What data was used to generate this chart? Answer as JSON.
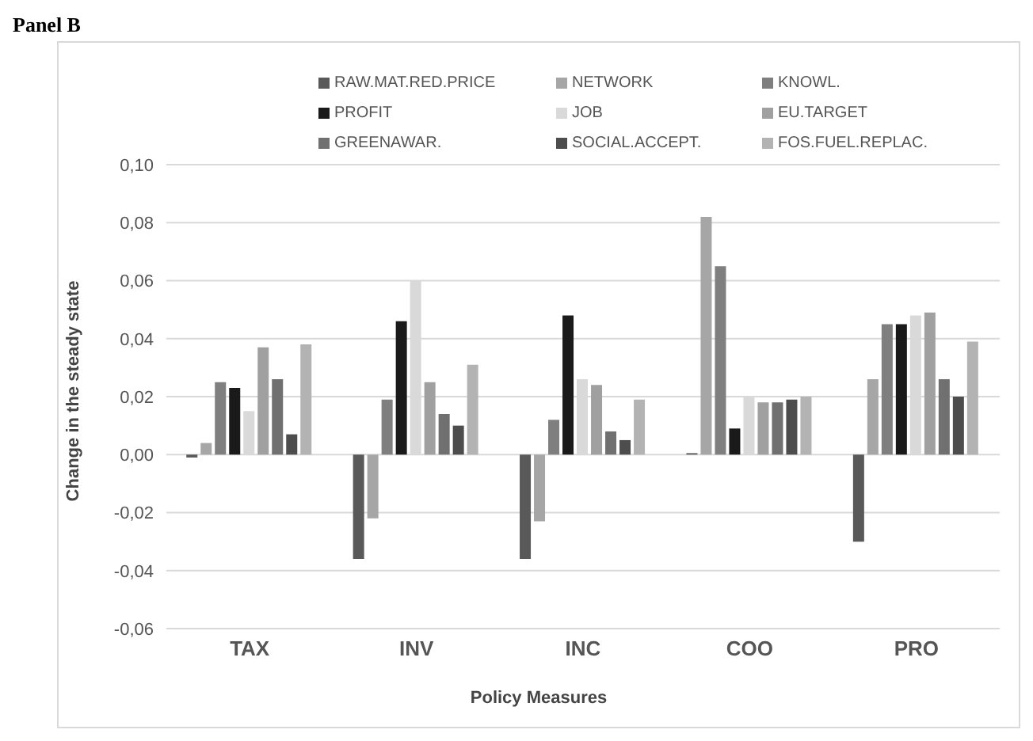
{
  "chart_data": {
    "type": "bar",
    "title": "Panel B",
    "xlabel": "Policy Measures",
    "ylabel": "Change in the steady state",
    "categories": [
      "TAX",
      "INV",
      "INC",
      "COO",
      "PRO"
    ],
    "series": [
      {
        "name": "RAW.MAT.RED.PRICE",
        "color": "#595959",
        "values": [
          -0.001,
          -0.036,
          -0.036,
          0.0005,
          -0.03
        ]
      },
      {
        "name": "NETWORK",
        "color": "#a6a6a6",
        "values": [
          0.004,
          -0.022,
          -0.023,
          0.082,
          0.026
        ]
      },
      {
        "name": "KNOWL.",
        "color": "#7f7f7f",
        "values": [
          0.025,
          0.019,
          0.012,
          0.065,
          0.045
        ]
      },
      {
        "name": "PROFIT",
        "color": "#1a1a1a",
        "values": [
          0.023,
          0.046,
          0.048,
          0.009,
          0.045
        ]
      },
      {
        "name": "JOB",
        "color": "#d9d9d9",
        "values": [
          0.015,
          0.06,
          0.026,
          0.02,
          0.048
        ]
      },
      {
        "name": "EU.TARGET",
        "color": "#a0a0a0",
        "values": [
          0.037,
          0.025,
          0.024,
          0.018,
          0.049
        ]
      },
      {
        "name": "GREENAWAR.",
        "color": "#707070",
        "values": [
          0.026,
          0.014,
          0.008,
          0.018,
          0.026
        ]
      },
      {
        "name": "SOCIAL.ACCEPT.",
        "color": "#4d4d4d",
        "values": [
          0.007,
          0.01,
          0.005,
          0.019,
          0.02
        ]
      },
      {
        "name": "FOS.FUEL.REPLAC.",
        "color": "#b3b3b3",
        "values": [
          0.038,
          0.031,
          0.019,
          0.02,
          0.039
        ]
      }
    ],
    "ylim": [
      -0.06,
      0.1
    ],
    "yticks": [
      {
        "value": -0.06,
        "label": "-0,06"
      },
      {
        "value": -0.04,
        "label": "-0,04"
      },
      {
        "value": -0.02,
        "label": "-0,02"
      },
      {
        "value": 0,
        "label": "0,00"
      },
      {
        "value": 0.02,
        "label": "0,02"
      },
      {
        "value": 0.04,
        "label": "0,04"
      },
      {
        "value": 0.06,
        "label": "0,06"
      },
      {
        "value": 0.08,
        "label": "0,08"
      },
      {
        "value": 0.1,
        "label": "0,10"
      }
    ],
    "grid": "y",
    "legend": "top"
  }
}
